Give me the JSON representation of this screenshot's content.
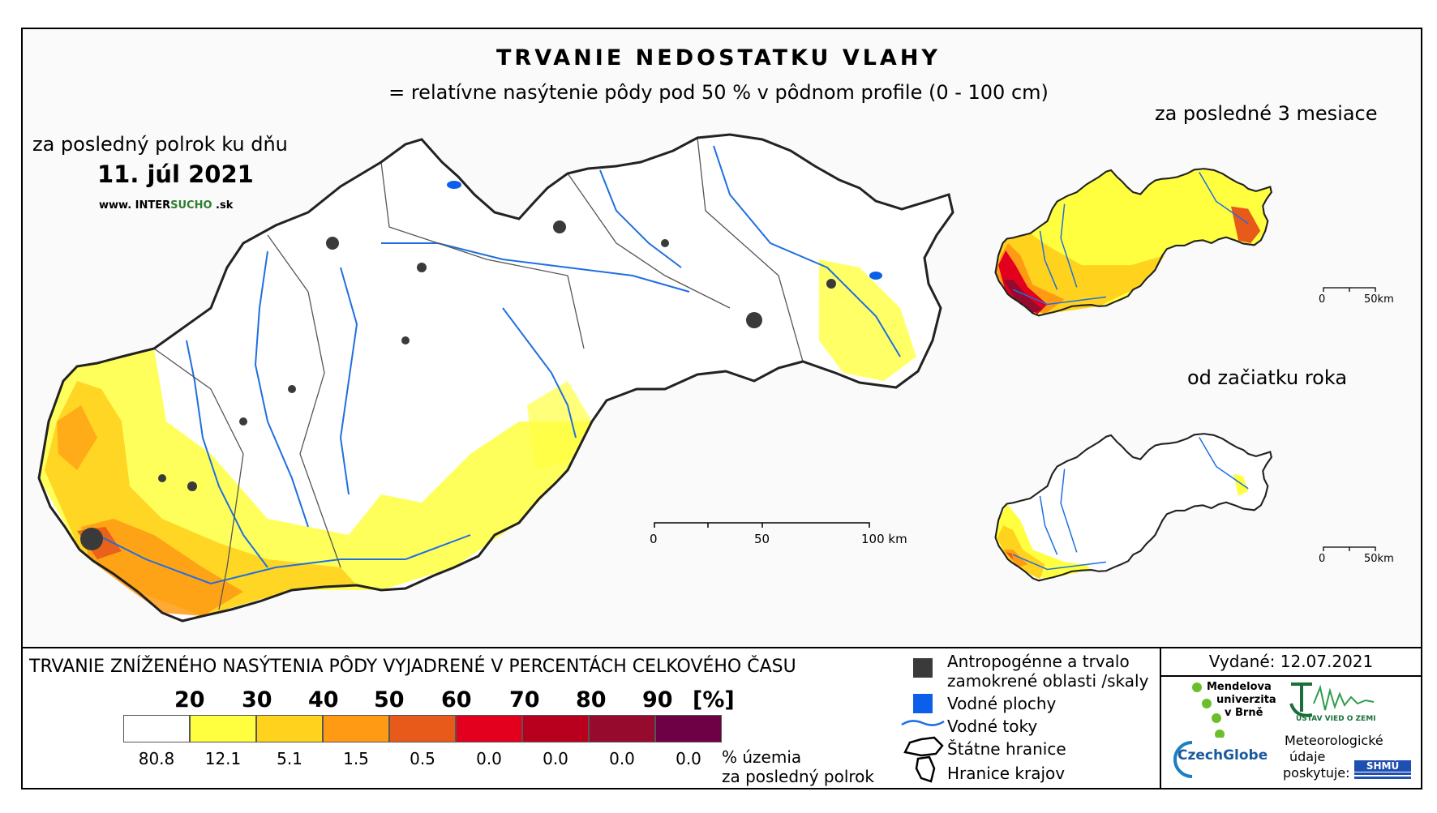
{
  "header": {
    "title": "TRVANIE NEDOSTATKU VLAHY",
    "subtitle": "= relatívne nasýtenie pôdy pod 50 % v pôdnom profile (0 - 100 cm)"
  },
  "main_map": {
    "label": "za posledný polrok ku dňu",
    "date": "11. júl 2021",
    "website_prefix": "www. INTER",
    "website_brand": "SUCHO",
    "website_suffix": " .sk",
    "scalebar": [
      "0",
      "50",
      "100 km"
    ]
  },
  "inset_3m": {
    "label": "za posledné 3 mesiace",
    "scalebar": [
      "0",
      "50km"
    ]
  },
  "inset_year": {
    "label": "od začiatku roka",
    "scalebar": [
      "0",
      "50km"
    ]
  },
  "legend": {
    "title": "TRVANIE ZNÍŽENÉHO NASÝTENIA PÔDY VYJADRENÉ V PERCENTÁCH CELKOVÉHO ČASU",
    "thresholds": [
      "20",
      "30",
      "40",
      "50",
      "60",
      "70",
      "80",
      "90",
      "[%]"
    ],
    "classes": [
      {
        "color": "#ffffff",
        "pct": "80.8"
      },
      {
        "color": "#ffff40",
        "pct": "12.1"
      },
      {
        "color": "#ffd21e",
        "pct": "5.1"
      },
      {
        "color": "#ff9a14",
        "pct": "1.5"
      },
      {
        "color": "#e85a1a",
        "pct": "0.5"
      },
      {
        "color": "#e2001e",
        "pct": "0.0"
      },
      {
        "color": "#b8001e",
        "pct": "0.0"
      },
      {
        "color": "#960a2d",
        "pct": "0.0"
      },
      {
        "color": "#6e0045",
        "pct": "0.0"
      }
    ],
    "pct_label_1": "% územia",
    "pct_label_2": "za posledný polrok"
  },
  "key": {
    "urban": "Antropogénne a trvalo",
    "urban2": "zamokrené oblasti /skaly",
    "water": "Vodné plochy",
    "rivers": "Vodné toky",
    "state": "Štátne hranice",
    "regions": "Hranice krajov"
  },
  "issued": "Vydané: 12.07.2021",
  "logos": {
    "mendel": [
      "Mendelova",
      "univerzita",
      "v Brně"
    ],
    "czechglobe": "CzechGlobe",
    "uvz": "ÚSTAV VIED O ZEMI",
    "meteo": [
      "Meteorologické",
      "údaje",
      "poskytuje:"
    ],
    "shmu": "SHMÚ"
  },
  "colors": {
    "river": "#1f6fe0",
    "urban": "#3a3a3a",
    "water": "#0b5fe8"
  }
}
